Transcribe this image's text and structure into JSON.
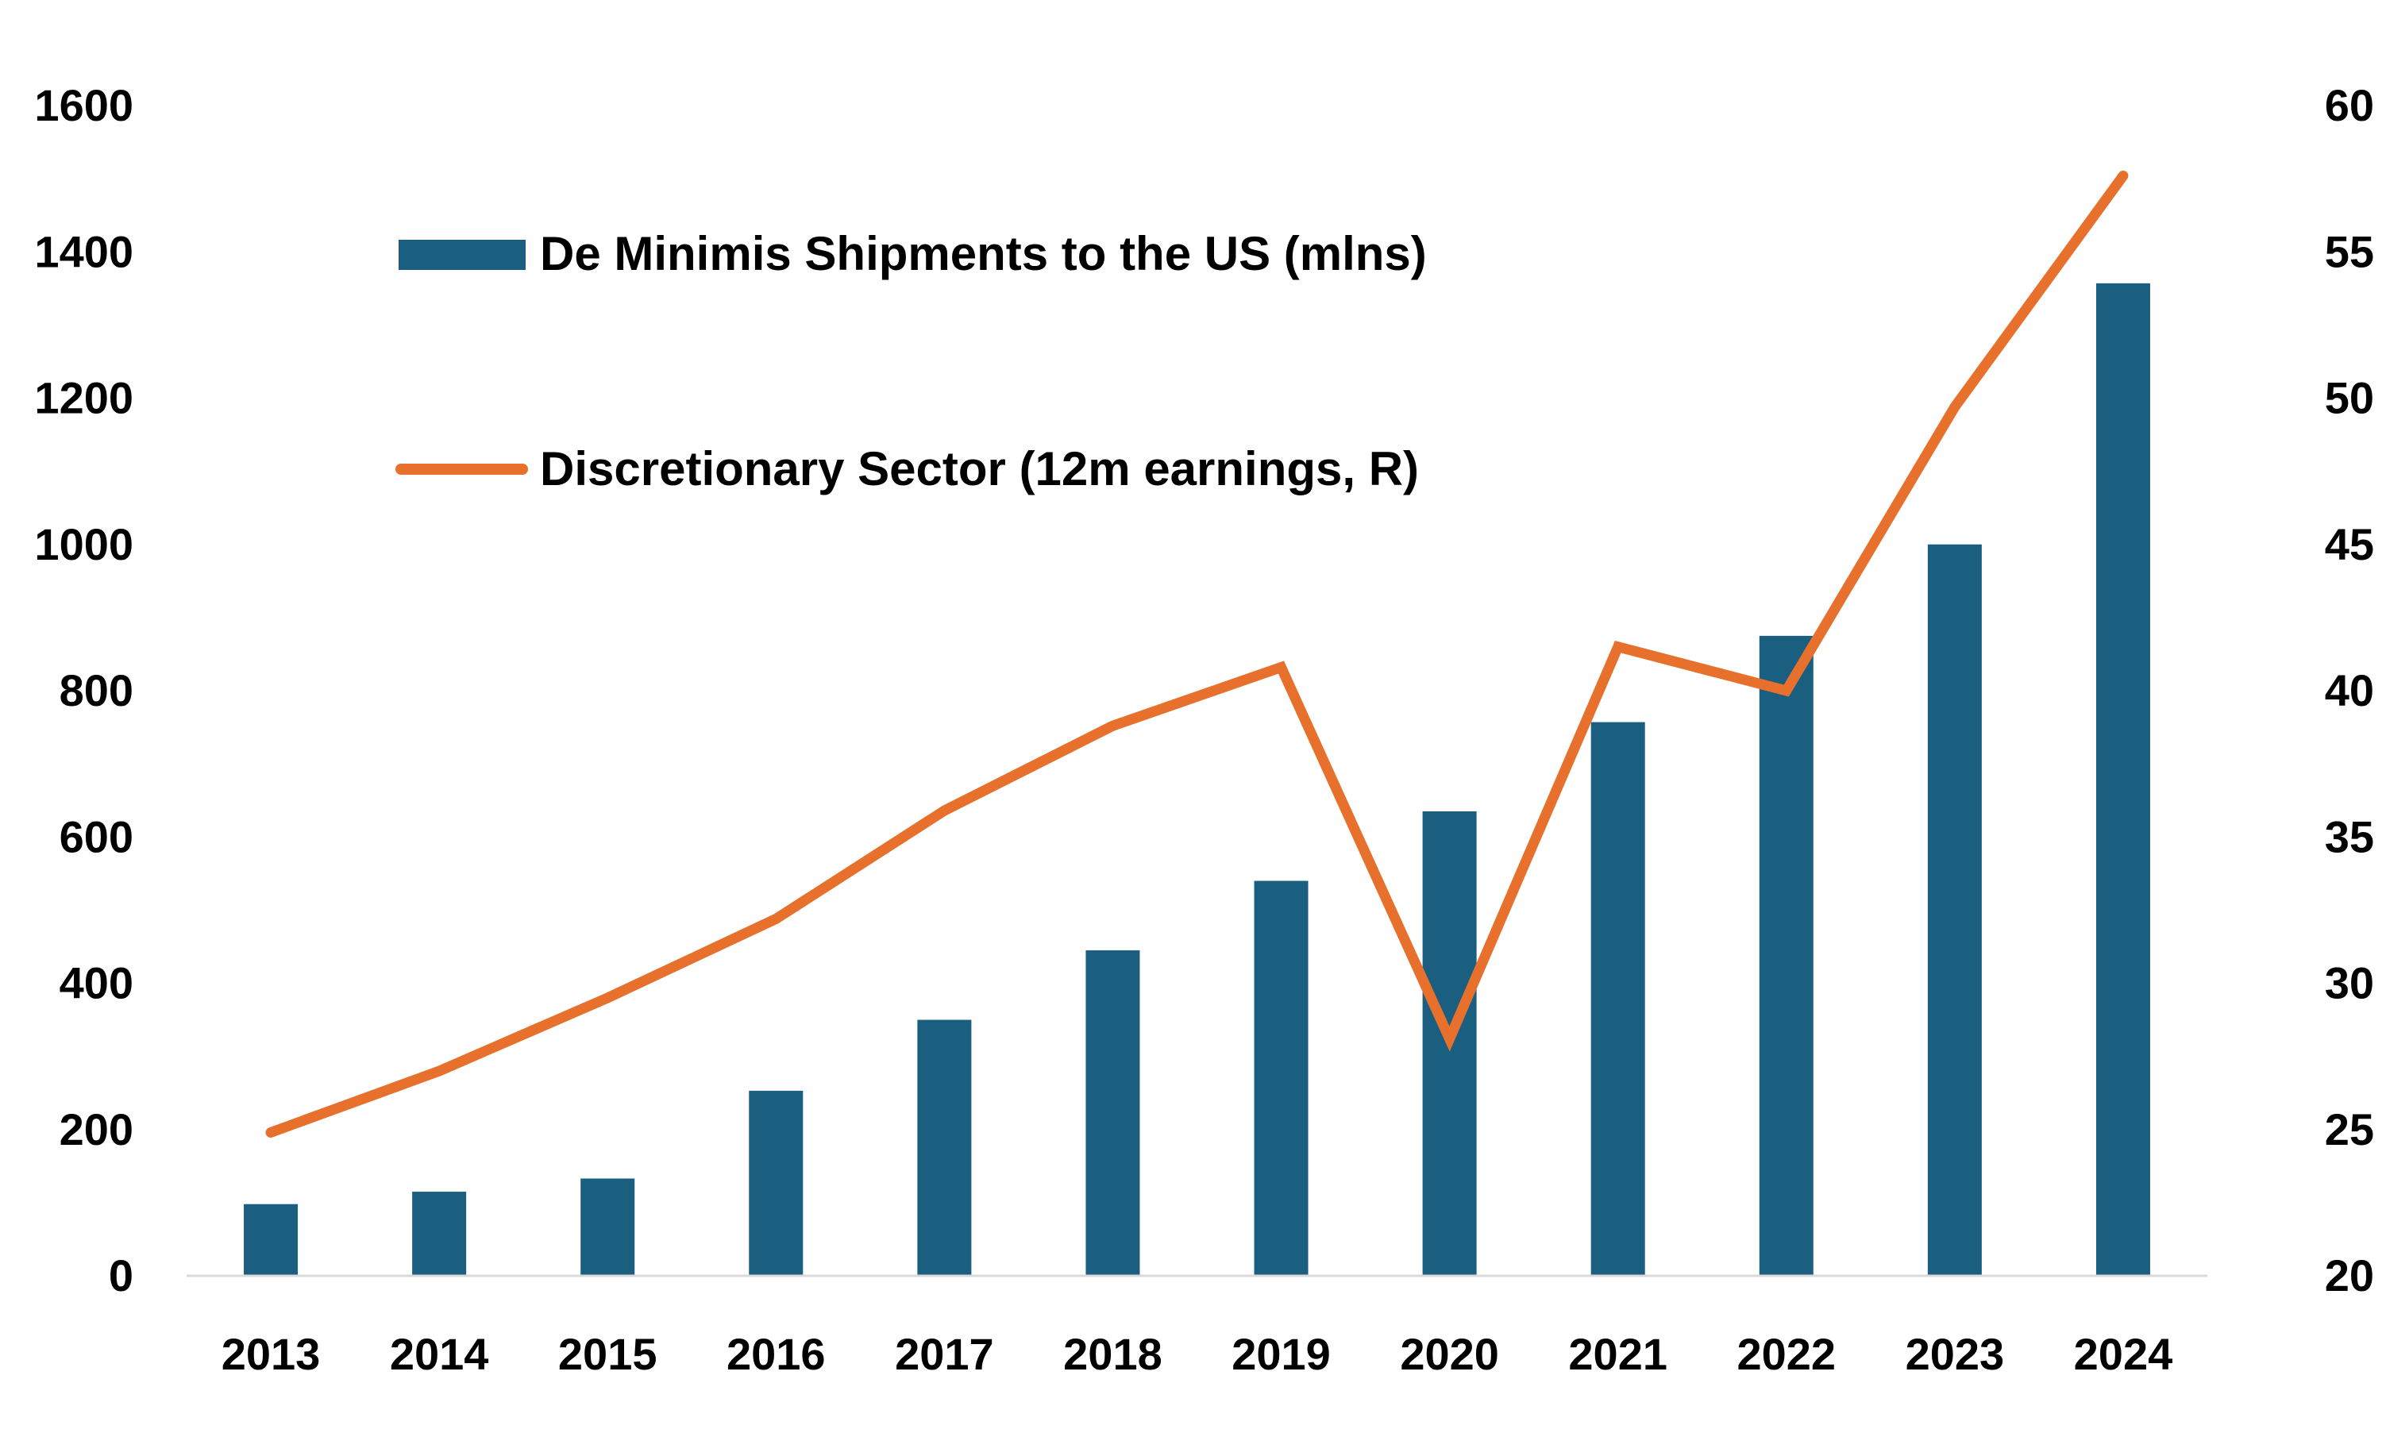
{
  "chart_data": {
    "type": "bar",
    "categories": [
      "2013",
      "2014",
      "2015",
      "2016",
      "2017",
      "2018",
      "2019",
      "2020",
      "2021",
      "2022",
      "2023",
      "2024"
    ],
    "series": [
      {
        "name": "De Minimis Shipments to the US (mlns)",
        "type": "bar",
        "axis": "left",
        "color": "#1a5e80",
        "values": [
          98,
          115,
          133,
          253,
          350,
          445,
          540,
          635,
          757,
          875,
          1000,
          1357
        ]
      },
      {
        "name": "Discretionary Sector (12m earnings, R)",
        "type": "line",
        "axis": "right",
        "color": "#e8702d",
        "values": [
          24.9,
          27.0,
          29.5,
          32.2,
          35.9,
          38.8,
          40.8,
          28.1,
          41.5,
          40.0,
          49.7,
          57.6
        ]
      }
    ],
    "y_left": {
      "ylim": [
        0,
        1600
      ],
      "ticks": [
        "0",
        "200",
        "400",
        "600",
        "800",
        "1000",
        "1200",
        "1400",
        "1600"
      ]
    },
    "y_right": {
      "ylim": [
        20,
        60
      ],
      "ticks": [
        "20",
        "25",
        "30",
        "35",
        "40",
        "45",
        "50",
        "55",
        "60"
      ]
    },
    "legend": {
      "placement": "top-left"
    },
    "grid": false,
    "title": "",
    "xlabel": "",
    "ylabel": ""
  }
}
